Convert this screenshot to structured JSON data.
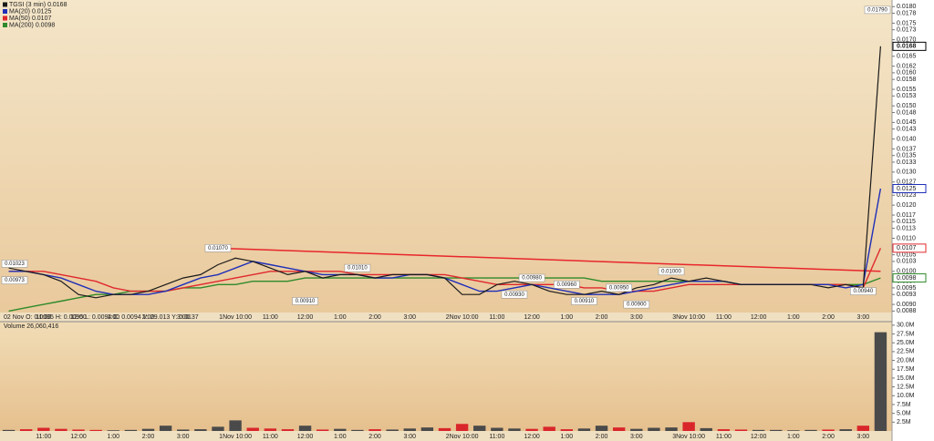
{
  "chart_data": [
    {
      "type": "line",
      "categories": [
        null,
        null,
        "11:00",
        null,
        "12:00",
        null,
        "1:00",
        null,
        "2:00",
        null,
        "3:00",
        null,
        null,
        "1Nov 10:00",
        null,
        "11:00",
        null,
        "12:00",
        null,
        "1:00",
        null,
        "2:00",
        null,
        "3:00",
        null,
        null,
        "2Nov 10:00",
        null,
        "11:00",
        null,
        "12:00",
        null,
        "1:00",
        null,
        "2:00",
        null,
        "3:00",
        null,
        null,
        "3Nov 10:00",
        null,
        "11:00",
        null,
        "12:00",
        null,
        "1:00",
        null,
        "2:00",
        null,
        "3:00",
        null
      ],
      "series": [
        {
          "name": "TGSI (3 min)",
          "color": "#1a1a1a",
          "values": [
            0.0101,
            0.01,
            0.0099,
            0.0097,
            0.0093,
            0.0092,
            0.0093,
            0.0093,
            0.0094,
            0.0096,
            0.0098,
            0.0099,
            0.0102,
            0.0104,
            0.0103,
            0.0101,
            0.0099,
            0.01,
            0.0098,
            0.0099,
            0.0099,
            0.0098,
            0.0099,
            0.0099,
            0.0099,
            0.0098,
            0.0093,
            0.0093,
            0.0096,
            0.0097,
            0.0096,
            0.0094,
            0.0093,
            0.0093,
            0.0094,
            0.0093,
            0.0095,
            0.0096,
            0.0098,
            0.0097,
            0.0098,
            0.0097,
            0.0096,
            0.0096,
            0.0096,
            0.0096,
            0.0096,
            0.0095,
            0.0096,
            0.0095,
            0.0168
          ]
        },
        {
          "name": "MA(20)",
          "color": "#1f2fb8",
          "values": [
            0.01,
            0.01,
            0.0099,
            0.0098,
            0.0096,
            0.0094,
            0.0093,
            0.0093,
            0.0093,
            0.0094,
            0.0096,
            0.0098,
            0.0099,
            0.0101,
            0.0103,
            0.0102,
            0.0101,
            0.01,
            0.0099,
            0.0099,
            0.0099,
            0.0098,
            0.0098,
            0.0099,
            0.0099,
            0.0098,
            0.0096,
            0.0094,
            0.0094,
            0.0095,
            0.0096,
            0.0095,
            0.0094,
            0.0093,
            0.0093,
            0.0093,
            0.0094,
            0.0095,
            0.0096,
            0.0097,
            0.0097,
            0.0097,
            0.0096,
            0.0096,
            0.0096,
            0.0096,
            0.0096,
            0.0096,
            0.0095,
            0.0096,
            0.0125
          ]
        },
        {
          "name": "MA(50)",
          "color": "#e0282d",
          "values": [
            0.01,
            0.01,
            0.01,
            0.0099,
            0.0098,
            0.0097,
            0.0095,
            0.0094,
            0.0094,
            0.0094,
            0.0095,
            0.0096,
            0.0097,
            0.0098,
            0.0099,
            0.01,
            0.01,
            0.01,
            0.01,
            0.01,
            0.0099,
            0.0099,
            0.0099,
            0.0099,
            0.0099,
            0.0099,
            0.0098,
            0.0097,
            0.0096,
            0.0096,
            0.0096,
            0.0096,
            0.0096,
            0.0095,
            0.0095,
            0.0094,
            0.0094,
            0.0094,
            0.0095,
            0.0096,
            0.0096,
            0.0096,
            0.0096,
            0.0096,
            0.0096,
            0.0096,
            0.0096,
            0.0096,
            0.0096,
            0.0095,
            0.0107
          ]
        },
        {
          "name": "MA(200)",
          "color": "#2e8a2a",
          "values": [
            0.0088,
            0.0089,
            0.009,
            0.0091,
            0.0092,
            0.0093,
            0.0093,
            0.0094,
            0.0094,
            0.0094,
            0.0095,
            0.0095,
            0.0096,
            0.0096,
            0.0097,
            0.0097,
            0.0097,
            0.0098,
            0.0098,
            0.0098,
            0.0098,
            0.0098,
            0.0098,
            0.0098,
            0.0098,
            0.0098,
            0.0098,
            0.0098,
            0.0098,
            0.0098,
            0.0098,
            0.0098,
            0.0098,
            0.0098,
            0.0097,
            0.0097,
            0.0097,
            0.0097,
            0.0097,
            0.0097,
            0.0097,
            0.0097,
            0.0096,
            0.0096,
            0.0096,
            0.0096,
            0.0096,
            0.0096,
            0.0096,
            0.0096,
            0.0098
          ]
        }
      ],
      "trendline": {
        "color": "#e8262b",
        "points": [
          {
            "index": 12,
            "value": 0.0107
          },
          {
            "index": 50,
            "value": 0.01
          }
        ]
      },
      "annotations": [
        {
          "label": "0.01023",
          "value": 0.01023,
          "index": 0
        },
        {
          "label": "0.00973",
          "value": 0.00973,
          "index": 0
        },
        {
          "label": "0.01070",
          "value": 0.0107,
          "index": 12
        },
        {
          "label": "0.00910",
          "value": 0.0091,
          "index": 17
        },
        {
          "label": "0.01010",
          "value": 0.0101,
          "index": 20
        },
        {
          "label": "0.00930",
          "value": 0.0093,
          "index": 29
        },
        {
          "label": "0.00980",
          "value": 0.0098,
          "index": 30
        },
        {
          "label": "0.00960",
          "value": 0.0096,
          "index": 32
        },
        {
          "label": "0.00910",
          "value": 0.0091,
          "index": 33
        },
        {
          "label": "0.00950",
          "value": 0.0095,
          "index": 35
        },
        {
          "label": "0.00900",
          "value": 0.009,
          "index": 36
        },
        {
          "label": "0.01000",
          "value": 0.01,
          "index": 38
        },
        {
          "label": "0.00940",
          "value": 0.0094,
          "index": 49
        },
        {
          "label": "0.01790",
          "value": 0.0179,
          "index": 50
        }
      ],
      "status": "02 Nov O: 0.0095 H: 0.0095 L: 0.0094 C: 0.0094 V: 29.013 Y: 0.0137",
      "ylim": [
        0.0087,
        0.0182
      ],
      "yticks": [
        {
          "value": 0.018,
          "label": "0.0180"
        },
        0.0178,
        0.0175,
        0.0173,
        {
          "value": 0.017,
          "label": "0.0170"
        },
        0.0165,
        0.0162,
        {
          "value": 0.016,
          "label": "0.0160"
        },
        0.0158,
        0.0155,
        0.0153,
        {
          "value": 0.015,
          "label": "0.0150"
        },
        0.0148,
        0.0145,
        0.0143,
        {
          "value": 0.014,
          "label": "0.0140"
        },
        0.0137,
        0.0135,
        0.0133,
        {
          "value": 0.013,
          "label": "0.0130"
        },
        0.0127,
        0.0123,
        {
          "value": 0.012,
          "label": "0.0120"
        },
        0.0117,
        0.0115,
        0.0113,
        {
          "value": 0.011,
          "label": "0.0110"
        },
        0.0105,
        0.0103,
        {
          "value": 0.01,
          "label": "0.0100"
        },
        0.0097,
        0.0095,
        0.0093,
        {
          "value": 0.009,
          "label": "0.0090"
        },
        0.0088
      ]
    },
    {
      "type": "bar",
      "title": "Volume 26,060,416",
      "categories": [
        null,
        null,
        "11:00",
        null,
        "12:00",
        null,
        "1:00",
        null,
        "2:00",
        null,
        "3:00",
        null,
        null,
        "1Nov 10:00",
        null,
        "11:00",
        null,
        "12:00",
        null,
        "1:00",
        null,
        "2:00",
        null,
        "3:00",
        null,
        null,
        "2Nov 10:00",
        null,
        "11:00",
        null,
        "12:00",
        null,
        "1:00",
        null,
        "2:00",
        null,
        "3:00",
        null,
        null,
        "3Nov 10:00",
        null,
        "11:00",
        null,
        "12:00",
        null,
        "1:00",
        null,
        "2:00",
        null,
        "3:00",
        null
      ],
      "values": [
        300000,
        500000,
        900000,
        600000,
        400000,
        300000,
        200000,
        300000,
        600000,
        1500000,
        400000,
        500000,
        1200000,
        3000000,
        900000,
        700000,
        500000,
        1500000,
        400000,
        600000,
        300000,
        500000,
        400000,
        700000,
        1000000,
        800000,
        2000000,
        1500000,
        900000,
        700000,
        600000,
        1200000,
        500000,
        700000,
        1500000,
        1000000,
        600000,
        900000,
        1000000,
        2500000,
        800000,
        500000,
        400000,
        300000,
        300000,
        200000,
        300000,
        400000,
        500000,
        1500000,
        28000000
      ],
      "color": "#4a4a4a",
      "down_color": "#d9262b",
      "ylim": [
        0,
        31000000
      ],
      "yticks": [
        {
          "value": 2500000,
          "label": "2.5M"
        },
        {
          "value": 5000000,
          "label": "5.0M"
        },
        {
          "value": 7500000,
          "label": "7.5M"
        },
        {
          "value": 10000000,
          "label": "10.0M"
        },
        {
          "value": 12500000,
          "label": "12.5M"
        },
        {
          "value": 15000000,
          "label": "15.0M"
        },
        {
          "value": 17500000,
          "label": "17.5M"
        },
        {
          "value": 20000000,
          "label": "20.0M"
        },
        {
          "value": 22500000,
          "label": "22.5M"
        },
        {
          "value": 25000000,
          "label": "25.0M"
        },
        {
          "value": 27500000,
          "label": "27.5M"
        },
        {
          "value": 30000000,
          "label": "30.0M"
        }
      ]
    }
  ]
}
